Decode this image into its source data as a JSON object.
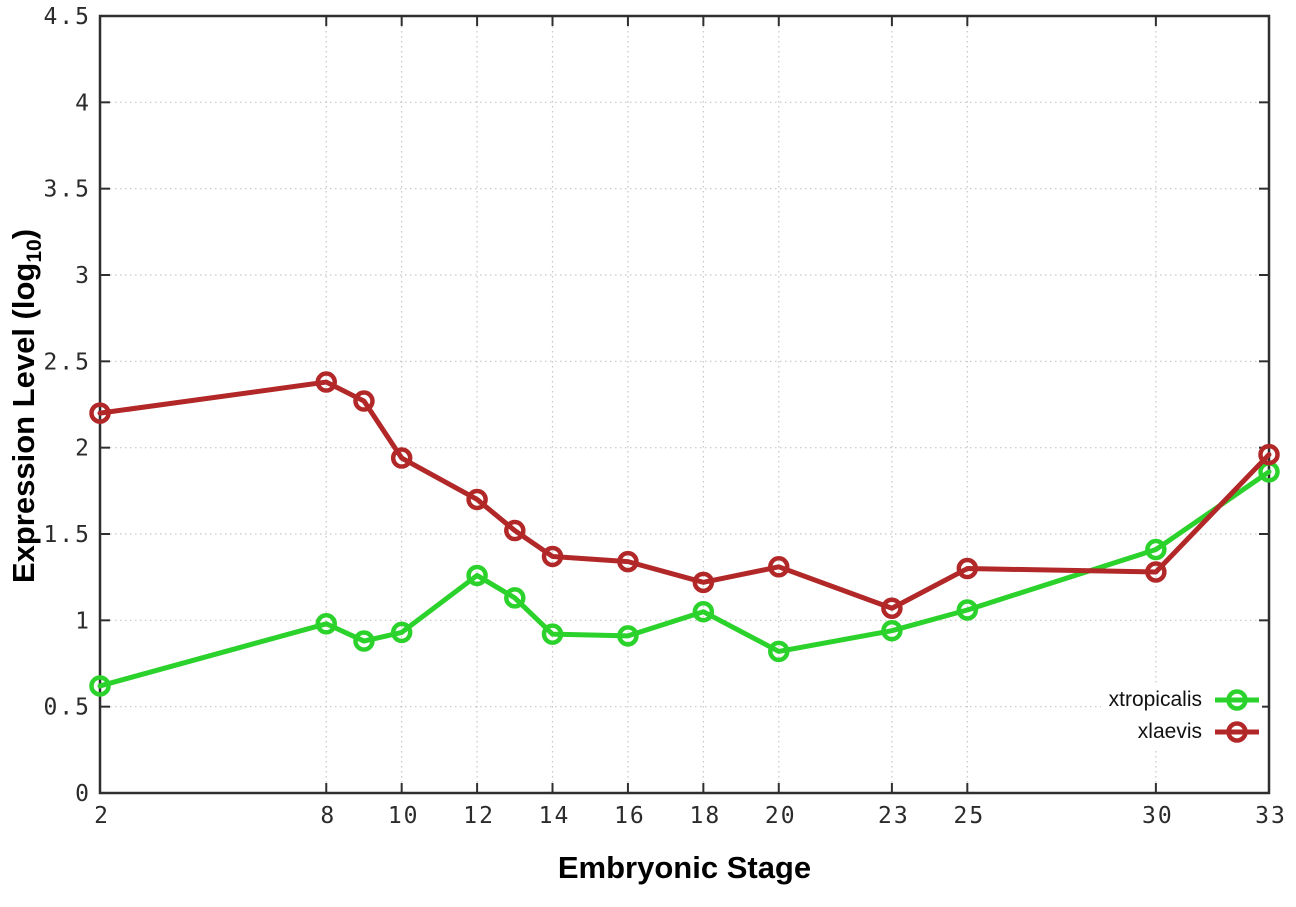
{
  "page": {
    "background": "#ffffff"
  },
  "chart_data": {
    "type": "line",
    "title": "",
    "xlabel": "Embryonic Stage",
    "ylabel": "Expression Level (log10)",
    "ylabel_rich": {
      "pre": "Expression Level (log",
      "sub": "10",
      "post": ")"
    },
    "xlim": [
      2,
      33
    ],
    "ylim": [
      0,
      4.5
    ],
    "xticks": [
      2,
      8,
      10,
      12,
      14,
      16,
      18,
      20,
      23,
      25,
      30,
      33
    ],
    "xtick_labels": [
      "2",
      "8",
      "10",
      "12",
      "14",
      "16",
      "18",
      "20",
      "23",
      "25",
      "30",
      "33"
    ],
    "yticks": [
      0,
      0.5,
      1,
      1.5,
      2,
      2.5,
      3,
      3.5,
      4,
      4.5
    ],
    "ytick_labels": [
      "0",
      "0.5",
      "1",
      "1.5",
      "2",
      "2.5",
      "3",
      "3.5",
      "4",
      "4.5"
    ],
    "grid": true,
    "grid_style": "dotted",
    "marker": "open-circle",
    "legend_position": "inside-bottom-right",
    "x": [
      2,
      8,
      9,
      10,
      12,
      13,
      14,
      16,
      18,
      20,
      23,
      25,
      30,
      33
    ],
    "series": [
      {
        "name": "xtropicalis",
        "color": "#2bd22b",
        "values": [
          0.62,
          0.98,
          0.88,
          0.93,
          1.26,
          1.13,
          0.92,
          0.91,
          1.05,
          0.82,
          0.94,
          1.06,
          1.41,
          1.86
        ]
      },
      {
        "name": "xlaevis",
        "color": "#b22828",
        "values": [
          2.2,
          2.38,
          2.27,
          1.94,
          1.7,
          1.52,
          1.37,
          1.34,
          1.22,
          1.31,
          1.07,
          1.3,
          1.28,
          1.96
        ]
      }
    ],
    "colors": {
      "grid": "#c6c6c6",
      "axis": "#2f2f2f",
      "tick_text": "#2b2b2b",
      "label_text": "#000000"
    }
  }
}
